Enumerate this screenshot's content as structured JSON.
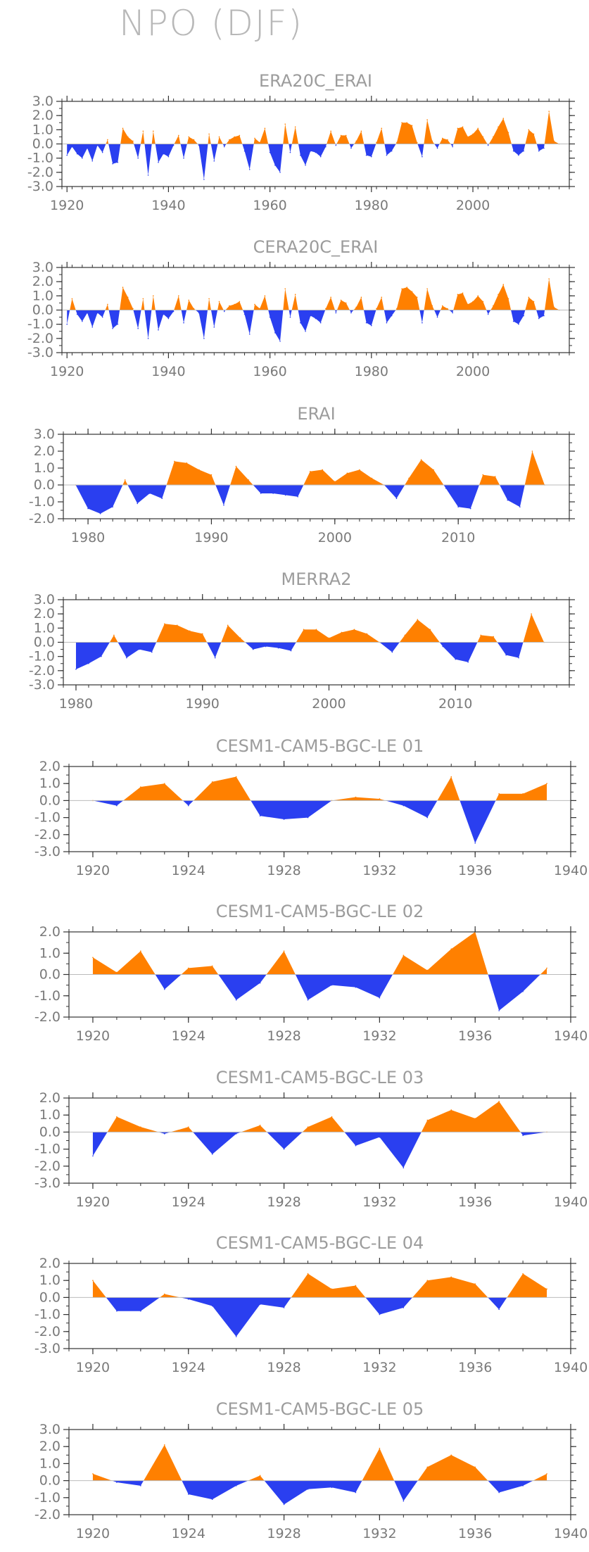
{
  "title": "NPO (DJF)",
  "colors": {
    "positive": "#ff8000",
    "negative": "#2a3ff0",
    "frame": "#333333"
  },
  "chart_data": [
    {
      "type": "area",
      "title": "ERA20C_ERAI",
      "x": [
        1920,
        1921,
        1922,
        1923,
        1924,
        1925,
        1926,
        1927,
        1928,
        1929,
        1930,
        1931,
        1932,
        1933,
        1934,
        1935,
        1936,
        1937,
        1938,
        1939,
        1940,
        1941,
        1942,
        1943,
        1944,
        1945,
        1946,
        1947,
        1948,
        1949,
        1950,
        1951,
        1952,
        1953,
        1954,
        1955,
        1956,
        1957,
        1958,
        1959,
        1960,
        1961,
        1962,
        1963,
        1964,
        1965,
        1966,
        1967,
        1968,
        1969,
        1970,
        1971,
        1972,
        1973,
        1974,
        1975,
        1976,
        1977,
        1978,
        1979,
        1980,
        1981,
        1982,
        1983,
        1984,
        1985,
        1986,
        1987,
        1988,
        1989,
        1990,
        1991,
        1992,
        1993,
        1994,
        1995,
        1996,
        1997,
        1998,
        1999,
        2000,
        2001,
        2002,
        2003,
        2004,
        2005,
        2006,
        2007,
        2008,
        2009,
        2010,
        2011,
        2012,
        2013,
        2014,
        2015,
        2016,
        2017
      ],
      "values": [
        -0.8,
        -0.2,
        -0.7,
        -1.0,
        -0.3,
        -1.2,
        -0.1,
        -0.6,
        0.3,
        -1.4,
        -1.3,
        1.1,
        0.5,
        0.2,
        -1.0,
        0.9,
        -2.2,
        0.9,
        -1.3,
        -0.7,
        -0.9,
        -0.1,
        0.6,
        -1.0,
        0.5,
        0.3,
        -0.1,
        -2.5,
        0.7,
        -1.2,
        0.5,
        -0.2,
        0.3,
        0.5,
        0.6,
        -0.5,
        -1.8,
        0.4,
        0.1,
        1.1,
        -0.6,
        -1.5,
        -2.0,
        1.4,
        -0.6,
        1.2,
        -0.8,
        -1.5,
        -0.5,
        -0.6,
        -0.9,
        -0.2,
        0.9,
        -0.1,
        0.6,
        0.6,
        -0.3,
        0.2,
        0.9,
        -0.8,
        -0.9,
        0.1,
        1.1,
        -0.8,
        -0.5,
        0.1,
        1.5,
        1.5,
        1.3,
        0.1,
        -0.9,
        1.7,
        0.2,
        -0.3,
        0.4,
        0.3,
        -0.2,
        1.1,
        1.2,
        0.5,
        0.7,
        1.1,
        0.5,
        -0.1,
        0.5,
        1.2,
        1.8,
        0.8,
        -0.5,
        -0.8,
        -0.5,
        1.0,
        0.7,
        -0.5,
        -0.3,
        2.3,
        0.2,
        0.0
      ],
      "xlim": [
        1919,
        2019
      ],
      "ylim": [
        -3.0,
        3.0
      ],
      "xticks": [
        1920,
        1940,
        1960,
        1980,
        2000
      ],
      "xticks_minor": 2,
      "yticks": [
        3.0,
        2.0,
        1.0,
        0.0,
        -1.0,
        -2.0,
        -3.0
      ],
      "yticks_minor": 0.5,
      "ytick_labels": [
        "3.0",
        "2.0",
        "1.0",
        "0.0",
        "-1.0",
        "-2.0",
        "-3.0"
      ]
    },
    {
      "type": "area",
      "title": "CERA20C_ERAI",
      "x": [
        1920,
        1921,
        1922,
        1923,
        1924,
        1925,
        1926,
        1927,
        1928,
        1929,
        1930,
        1931,
        1932,
        1933,
        1934,
        1935,
        1936,
        1937,
        1938,
        1939,
        1940,
        1941,
        1942,
        1943,
        1944,
        1945,
        1946,
        1947,
        1948,
        1949,
        1950,
        1951,
        1952,
        1953,
        1954,
        1955,
        1956,
        1957,
        1958,
        1959,
        1960,
        1961,
        1962,
        1963,
        1964,
        1965,
        1966,
        1967,
        1968,
        1969,
        1970,
        1971,
        1972,
        1973,
        1974,
        1975,
        1976,
        1977,
        1978,
        1979,
        1980,
        1981,
        1982,
        1983,
        1984,
        1985,
        1986,
        1987,
        1988,
        1989,
        1990,
        1991,
        1992,
        1993,
        1994,
        1995,
        1996,
        1997,
        1998,
        1999,
        2000,
        2001,
        2002,
        2003,
        2004,
        2005,
        2006,
        2007,
        2008,
        2009,
        2010,
        2011,
        2012,
        2013,
        2014,
        2015,
        2016,
        2017
      ],
      "values": [
        -1.0,
        0.8,
        -0.3,
        -0.8,
        -0.2,
        -1.2,
        -0.2,
        -0.5,
        0.4,
        -1.3,
        -1.0,
        1.6,
        0.9,
        0.1,
        -1.3,
        0.8,
        -2.0,
        1.0,
        -1.4,
        -0.3,
        -0.6,
        -0.1,
        1.0,
        -0.9,
        0.7,
        0.1,
        -0.2,
        -2.0,
        0.8,
        -1.2,
        0.6,
        -0.1,
        0.3,
        0.4,
        0.6,
        -0.3,
        -1.7,
        0.4,
        0.1,
        1.0,
        -0.5,
        -1.6,
        -2.2,
        1.5,
        -0.5,
        1.1,
        -0.9,
        -1.5,
        -0.4,
        -0.6,
        -0.9,
        0.1,
        0.9,
        -0.2,
        0.7,
        0.5,
        -0.2,
        0.2,
        0.9,
        -0.9,
        -1.1,
        0.1,
        0.9,
        -0.9,
        -0.4,
        0.1,
        1.5,
        1.6,
        1.3,
        0.9,
        -0.9,
        1.5,
        0.3,
        -0.5,
        0.3,
        0.1,
        -0.2,
        1.1,
        1.2,
        0.4,
        0.6,
        1.0,
        0.6,
        -0.3,
        0.3,
        1.1,
        1.8,
        0.8,
        -0.8,
        -1.0,
        -0.4,
        0.9,
        0.6,
        -0.6,
        -0.4,
        2.2,
        0.2,
        0.0
      ],
      "xlim": [
        1919,
        2019
      ],
      "ylim": [
        -3.0,
        3.0
      ],
      "xticks": [
        1920,
        1940,
        1960,
        1980,
        2000
      ],
      "xticks_minor": 2,
      "yticks": [
        3.0,
        2.0,
        1.0,
        0.0,
        -1.0,
        -2.0,
        -3.0
      ],
      "yticks_minor": 0.5,
      "ytick_labels": [
        "3.0",
        "2.0",
        "1.0",
        "0.0",
        "-1.0",
        "-2.0",
        "-3.0"
      ]
    },
    {
      "type": "area",
      "title": "ERAI",
      "x": [
        1979,
        1980,
        1981,
        1982,
        1983,
        1984,
        1985,
        1986,
        1987,
        1988,
        1989,
        1990,
        1991,
        1992,
        1993,
        1994,
        1995,
        1996,
        1997,
        1998,
        1999,
        2000,
        2001,
        2002,
        2003,
        2004,
        2005,
        2006,
        2007,
        2008,
        2009,
        2010,
        2011,
        2012,
        2013,
        2014,
        2015,
        2016,
        2017
      ],
      "values": [
        0.0,
        -1.4,
        -1.7,
        -1.3,
        0.3,
        -1.1,
        -0.5,
        -0.8,
        1.4,
        1.3,
        0.9,
        0.6,
        -1.2,
        1.1,
        0.3,
        -0.5,
        -0.5,
        -0.6,
        -0.7,
        0.8,
        0.9,
        0.2,
        0.7,
        0.9,
        0.4,
        0.0,
        -0.8,
        0.4,
        1.5,
        0.9,
        -0.2,
        -1.3,
        -1.4,
        0.6,
        0.5,
        -0.9,
        -1.3,
        2.0,
        0.0
      ],
      "xlim": [
        1978,
        2019
      ],
      "ylim": [
        -2.0,
        3.0
      ],
      "xticks": [
        1980,
        1990,
        2000,
        2010
      ],
      "xticks_minor": 1,
      "yticks": [
        3.0,
        2.0,
        1.0,
        0.0,
        -1.0,
        -2.0
      ],
      "yticks_minor": 0.5,
      "ytick_labels": [
        "3.0",
        "2.0",
        "1.0",
        "0.0",
        "-1.0",
        "-2.0"
      ]
    },
    {
      "type": "area",
      "title": "MERRA2",
      "x": [
        1980,
        1981,
        1982,
        1983,
        1984,
        1985,
        1986,
        1987,
        1988,
        1989,
        1990,
        1991,
        1992,
        1993,
        1994,
        1995,
        1996,
        1997,
        1998,
        1999,
        2000,
        2001,
        2002,
        2003,
        2004,
        2005,
        2006,
        2007,
        2008,
        2009,
        2010,
        2011,
        2012,
        2013,
        2014,
        2015,
        2016,
        2017
      ],
      "values": [
        -1.9,
        -1.5,
        -1.0,
        0.5,
        -1.1,
        -0.5,
        -0.7,
        1.3,
        1.2,
        0.8,
        0.6,
        -1.1,
        1.2,
        0.3,
        -0.5,
        -0.3,
        -0.4,
        -0.6,
        0.9,
        0.9,
        0.3,
        0.7,
        0.9,
        0.6,
        0.0,
        -0.7,
        0.5,
        1.6,
        0.9,
        -0.3,
        -1.2,
        -1.4,
        0.5,
        0.4,
        -0.9,
        -1.1,
        2.0,
        0.0
      ],
      "xlim": [
        1979,
        2019
      ],
      "ylim": [
        -3.0,
        3.0
      ],
      "xticks": [
        1980,
        1990,
        2000,
        2010
      ],
      "xticks_minor": 1,
      "yticks": [
        3.0,
        2.0,
        1.0,
        0.0,
        -1.0,
        -2.0,
        -3.0
      ],
      "yticks_minor": 0.5,
      "ytick_labels": [
        "3.0",
        "2.0",
        "1.0",
        "0.0",
        "-1.0",
        "-2.0",
        "-3.0"
      ]
    },
    {
      "type": "area",
      "title": "CESM1-CAM5-BGC-LE 01",
      "x": [
        1920,
        1921,
        1922,
        1923,
        1924,
        1925,
        1926,
        1927,
        1928,
        1929,
        1930,
        1931,
        1932,
        1933,
        1934,
        1935,
        1936,
        1937,
        1938,
        1939
      ],
      "values": [
        0.0,
        -0.3,
        0.8,
        1.0,
        -0.3,
        1.1,
        1.4,
        -0.9,
        -1.1,
        -1.0,
        0.0,
        0.2,
        0.1,
        -0.3,
        -1.0,
        1.4,
        -2.5,
        0.4,
        0.4,
        1.0
      ],
      "xlim": [
        1919,
        1940
      ],
      "ylim": [
        -3.0,
        2.0
      ],
      "xticks": [
        1920,
        1924,
        1928,
        1932,
        1936,
        1940
      ],
      "xticks_minor": 1,
      "yticks": [
        2.0,
        1.0,
        0.0,
        -1.0,
        -2.0,
        -3.0
      ],
      "yticks_minor": 0.5,
      "ytick_labels": [
        "2.0",
        "1.0",
        "0.0",
        "-1.0",
        "-2.0",
        "-3.0"
      ]
    },
    {
      "type": "area",
      "title": "CESM1-CAM5-BGC-LE 02",
      "x": [
        1920,
        1921,
        1922,
        1923,
        1924,
        1925,
        1926,
        1927,
        1928,
        1929,
        1930,
        1931,
        1932,
        1933,
        1934,
        1935,
        1936,
        1937,
        1938,
        1939
      ],
      "values": [
        0.8,
        0.1,
        1.1,
        -0.7,
        0.3,
        0.4,
        -1.2,
        -0.4,
        1.1,
        -1.2,
        -0.5,
        -0.6,
        -1.1,
        0.9,
        0.2,
        1.2,
        2.0,
        -1.7,
        -0.8,
        0.3
      ],
      "xlim": [
        1919,
        1940
      ],
      "ylim": [
        -2.0,
        2.0
      ],
      "xticks": [
        1920,
        1924,
        1928,
        1932,
        1936,
        1940
      ],
      "xticks_minor": 1,
      "yticks": [
        2.0,
        1.0,
        0.0,
        -1.0,
        -2.0
      ],
      "yticks_minor": 0.5,
      "ytick_labels": [
        "2.0",
        "1.0",
        "0.0",
        "-1.0",
        "-2.0"
      ]
    },
    {
      "type": "area",
      "title": "CESM1-CAM5-BGC-LE 03",
      "x": [
        1920,
        1921,
        1922,
        1923,
        1924,
        1925,
        1926,
        1927,
        1928,
        1929,
        1930,
        1931,
        1932,
        1933,
        1934,
        1935,
        1936,
        1937,
        1938,
        1939
      ],
      "values": [
        -1.4,
        0.9,
        0.3,
        -0.1,
        0.3,
        -1.3,
        -0.1,
        0.4,
        -1.0,
        0.3,
        0.9,
        -0.8,
        -0.3,
        -2.1,
        0.7,
        1.3,
        0.8,
        1.8,
        -0.2,
        0.0
      ],
      "xlim": [
        1919,
        1940
      ],
      "ylim": [
        -3.0,
        2.0
      ],
      "xticks": [
        1920,
        1924,
        1928,
        1932,
        1936,
        1940
      ],
      "xticks_minor": 1,
      "yticks": [
        2.0,
        1.0,
        0.0,
        -1.0,
        -2.0,
        -3.0
      ],
      "yticks_minor": 0.5,
      "ytick_labels": [
        "2.0",
        "1.0",
        "0.0",
        "-1.0",
        "-2.0",
        "-3.0"
      ]
    },
    {
      "type": "area",
      "title": "CESM1-CAM5-BGC-LE 04",
      "x": [
        1920,
        1921,
        1922,
        1923,
        1924,
        1925,
        1926,
        1927,
        1928,
        1929,
        1930,
        1931,
        1932,
        1933,
        1934,
        1935,
        1936,
        1937,
        1938,
        1939
      ],
      "values": [
        1.0,
        -0.8,
        -0.8,
        0.2,
        -0.1,
        -0.5,
        -2.3,
        -0.4,
        -0.6,
        1.4,
        0.5,
        0.7,
        -1.0,
        -0.6,
        1.0,
        1.2,
        0.8,
        -0.7,
        1.4,
        0.5
      ],
      "xlim": [
        1919,
        1940
      ],
      "ylim": [
        -3.0,
        2.0
      ],
      "xticks": [
        1920,
        1924,
        1928,
        1932,
        1936,
        1940
      ],
      "xticks_minor": 1,
      "yticks": [
        2.0,
        1.0,
        0.0,
        -1.0,
        -2.0,
        -3.0
      ],
      "yticks_minor": 0.5,
      "ytick_labels": [
        "2.0",
        "1.0",
        "0.0",
        "-1.0",
        "-2.0",
        "-3.0"
      ]
    },
    {
      "type": "area",
      "title": "CESM1-CAM5-BGC-LE 05",
      "x": [
        1920,
        1921,
        1922,
        1923,
        1924,
        1925,
        1926,
        1927,
        1928,
        1929,
        1930,
        1931,
        1932,
        1933,
        1934,
        1935,
        1936,
        1937,
        1938,
        1939
      ],
      "values": [
        0.4,
        -0.1,
        -0.3,
        2.1,
        -0.8,
        -1.1,
        -0.3,
        0.3,
        -1.4,
        -0.5,
        -0.4,
        -0.7,
        1.9,
        -1.2,
        0.8,
        1.5,
        0.8,
        -0.7,
        -0.3,
        0.4
      ],
      "xlim": [
        1919,
        1940
      ],
      "ylim": [
        -2.0,
        3.0
      ],
      "xticks": [
        1920,
        1924,
        1928,
        1932,
        1936,
        1940
      ],
      "xticks_minor": 1,
      "yticks": [
        3.0,
        2.0,
        1.0,
        0.0,
        -1.0,
        -2.0
      ],
      "yticks_minor": 0.5,
      "ytick_labels": [
        "3.0",
        "2.0",
        "1.0",
        "0.0",
        "-1.0",
        "-2.0"
      ]
    }
  ]
}
